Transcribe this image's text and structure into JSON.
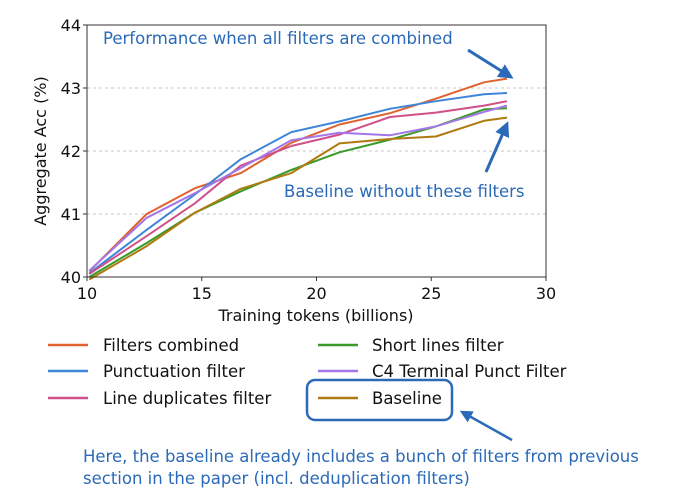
{
  "chart_data": {
    "type": "line",
    "title": "",
    "xlabel": "Training tokens (billions)",
    "ylabel": "Aggregate Acc (%)",
    "xlim": [
      10,
      30
    ],
    "ylim": [
      40,
      44
    ],
    "xticks": [
      "10",
      "15",
      "20",
      "25",
      "30"
    ],
    "yticks": [
      "40",
      "41",
      "42",
      "43",
      "44"
    ],
    "grid": "horizontal dashed",
    "legend_placement": "below",
    "x": [
      10.1,
      12.6,
      14.7,
      16.7,
      18.9,
      21.0,
      23.2,
      25.2,
      27.3,
      28.3
    ],
    "series": [
      {
        "name": "Filters combined",
        "color": "#e0622f",
        "values": [
          40.09,
          41.0,
          41.41,
          41.65,
          42.13,
          42.42,
          42.6,
          42.83,
          43.09,
          43.15
        ]
      },
      {
        "name": "Punctuation filter",
        "color": "#3f86d9",
        "values": [
          40.06,
          40.75,
          41.31,
          41.87,
          42.3,
          42.47,
          42.67,
          42.79,
          42.9,
          42.92
        ]
      },
      {
        "name": "Line duplicates filter",
        "color": "#d0508a",
        "values": [
          40.05,
          40.65,
          41.17,
          41.77,
          42.08,
          42.26,
          42.54,
          42.61,
          42.72,
          42.79
        ]
      },
      {
        "name": "Short lines filter",
        "color": "#3a9a2a",
        "values": [
          40.0,
          40.54,
          41.02,
          41.36,
          41.7,
          41.98,
          42.18,
          42.39,
          42.66,
          42.68
        ]
      },
      {
        "name": "C4 Terminal Punct Filter",
        "color": "#a377e8",
        "values": [
          40.1,
          40.94,
          41.33,
          41.73,
          42.17,
          42.29,
          42.25,
          42.39,
          42.62,
          42.72
        ]
      },
      {
        "name": "Baseline",
        "color": "#b07a12",
        "values": [
          39.96,
          40.49,
          41.02,
          41.4,
          41.65,
          42.12,
          42.19,
          42.23,
          42.48,
          42.53
        ]
      }
    ],
    "annotations": {
      "top": "Performance when all filters are combined",
      "middle": "Baseline without these filters",
      "bottom_line1": "Here, the baseline already includes a bunch of filters from previous",
      "bottom_line2": "section in the paper (incl. deduplication filters)"
    },
    "annotation_color": "#2a6ab8"
  }
}
